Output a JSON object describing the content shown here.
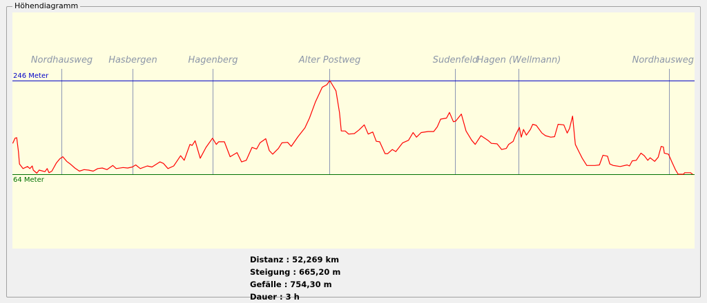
{
  "title": "Höhendiagramm",
  "colors": {
    "background": "#fffee0",
    "profile": "#ff0000",
    "max_line": "#0000c8",
    "min_line": "#007000",
    "waypoint_line": "#8c96b4",
    "waypoint_label": "#8c96a8"
  },
  "chart_data": {
    "type": "line",
    "xlim": [
      0,
      52.269
    ],
    "ylim_lines": {
      "max": 246,
      "min": 64
    },
    "max_label": "246 Meter",
    "min_label": "64 Meter",
    "waypoints": [
      {
        "name": "Nordhausweg",
        "km": 3.76
      },
      {
        "name": "Hasbergen",
        "km": 9.2
      },
      {
        "name": "Hagenberg",
        "km": 15.34
      },
      {
        "name": "Alter Postweg",
        "km": 24.28
      },
      {
        "name": "Sudenfeld",
        "km": 33.91
      },
      {
        "name": "Hagen (Wellmann)",
        "km": 38.78
      },
      {
        "name": "Nordhausweg",
        "km": 50.31
      }
    ],
    "x": [
      0.02,
      0.2,
      0.33,
      0.46,
      0.54,
      0.81,
      1.16,
      1.34,
      1.52,
      1.6,
      1.87,
      2.05,
      2.49,
      2.66,
      2.8,
      3.02,
      3.37,
      3.63,
      3.86,
      4.16,
      4.43,
      4.78,
      5.13,
      5.49,
      5.83,
      6.19,
      6.54,
      6.89,
      7.25,
      7.69,
      7.95,
      8.48,
      8.83,
      9.19,
      9.45,
      9.8,
      10.33,
      10.69,
      11.3,
      11.57,
      11.92,
      12.36,
      12.89,
      13.16,
      13.6,
      13.77,
      14.0,
      14.39,
      14.83,
      15.33,
      15.62,
      15.8,
      16.24,
      16.68,
      17.21,
      17.56,
      17.92,
      18.36,
      18.71,
      18.97,
      19.41,
      19.68,
      19.94,
      20.38,
      20.65,
      21.09,
      21.36,
      21.88,
      22.41,
      22.76,
      23.21,
      23.74,
      24.09,
      24.32,
      24.79,
      25.06,
      25.2,
      25.5,
      25.76,
      26.2,
      26.56,
      26.96,
      27.26,
      27.61,
      27.88,
      28.14,
      28.55,
      28.76,
      29.11,
      29.38,
      29.9,
      30.35,
      30.7,
      30.96,
      31.32,
      31.85,
      32.28,
      32.55,
      32.81,
      33.26,
      33.49,
      33.79,
      33.96,
      34.4,
      34.76,
      35.19,
      35.46,
      35.9,
      36.43,
      36.7,
      37.14,
      37.49,
      37.84,
      38.02,
      38.37,
      38.55,
      38.84,
      38.99,
      39.16,
      39.38,
      39.69,
      39.87,
      40.14,
      40.57,
      40.84,
      41.25,
      41.54,
      41.81,
      42.25,
      42.51,
      42.69,
      42.92,
      43.13,
      43.4,
      43.66,
      44.01,
      44.63,
      44.98,
      45.25,
      45.6,
      45.77,
      46.04,
      46.57,
      47.1,
      47.28,
      47.49,
      47.8,
      48.16,
      48.42,
      48.68,
      48.86,
      49.21,
      49.48,
      49.71,
      49.88,
      49.95,
      50.27,
      50.53,
      50.8,
      51.01,
      51.42,
      51.51,
      51.95,
      52.12
    ],
    "y": [
      124,
      134,
      135,
      108,
      84,
      75,
      79,
      75,
      80,
      72,
      66,
      72,
      69,
      75,
      67,
      70,
      86,
      94,
      98,
      89,
      84,
      76,
      70,
      73,
      72,
      70,
      75,
      76,
      73,
      81,
      75,
      77,
      76,
      78,
      82,
      75,
      80,
      78,
      88,
      85,
      75,
      80,
      100,
      91,
      122,
      120,
      129,
      95,
      116,
      134,
      122,
      127,
      127,
      98,
      106,
      88,
      91,
      116,
      113,
      125,
      133,
      110,
      103,
      114,
      125,
      126,
      118,
      137,
      154,
      173,
      204,
      233,
      238,
      246,
      226,
      184,
      148,
      148,
      142,
      143,
      150,
      160,
      142,
      146,
      128,
      127,
      104,
      104,
      112,
      108,
      125,
      130,
      145,
      136,
      145,
      147,
      147,
      156,
      171,
      173,
      184,
      166,
      167,
      181,
      148,
      130,
      122,
      139,
      130,
      124,
      123,
      112,
      114,
      122,
      128,
      140,
      155,
      136,
      151,
      140,
      151,
      161,
      159,
      144,
      139,
      136,
      137,
      161,
      160,
      144,
      153,
      177,
      122,
      108,
      95,
      81,
      81,
      82,
      101,
      99,
      84,
      81,
      79,
      82,
      80,
      90,
      91,
      105,
      100,
      91,
      96,
      89,
      97,
      118,
      117,
      105,
      103,
      88,
      73,
      64,
      64,
      67,
      67,
      64
    ]
  },
  "stats": {
    "distance": "Distanz : 52,269 km",
    "ascent": "Steigung : 665,20 m",
    "descent": "Gefälle : 754,30 m",
    "duration": "Dauer : 3 h"
  }
}
